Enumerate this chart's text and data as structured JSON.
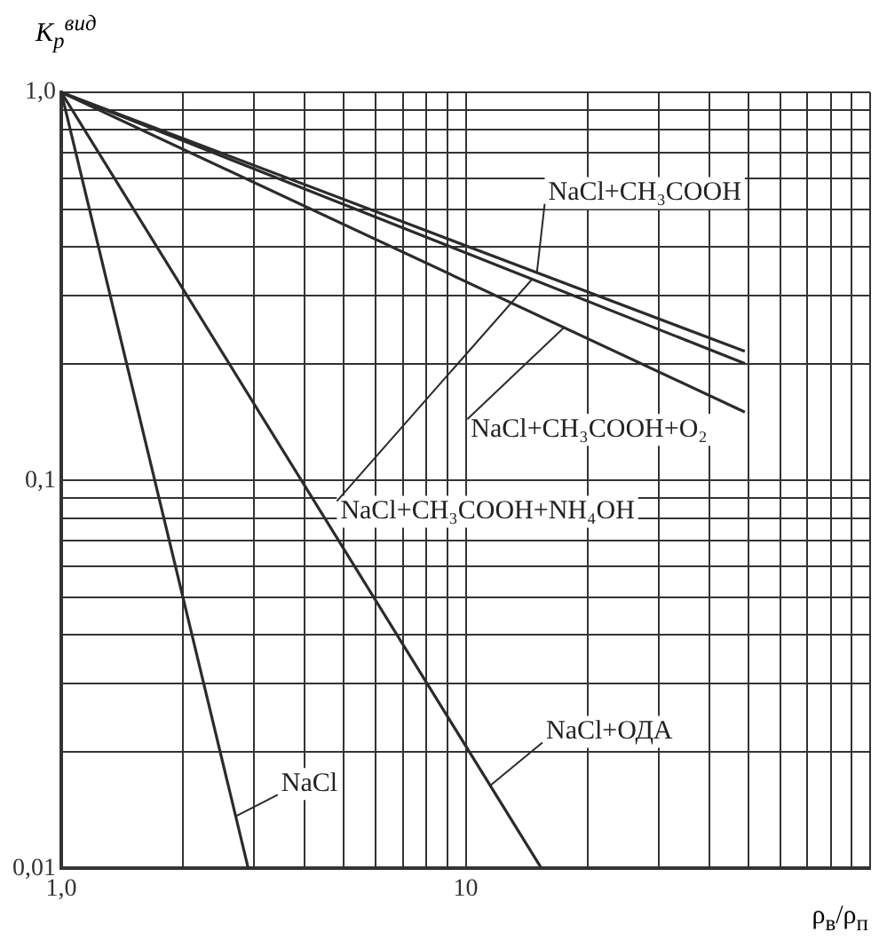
{
  "chart_data": {
    "type": "line",
    "xlabel": "ρ$_{в}$/ρ$_{п}$",
    "ylabel": "K$_{р}$$^{вид}$",
    "log": "xy",
    "grid": true,
    "legend": false,
    "marker": "none",
    "line_style": "solid",
    "xlim": [
      1,
      100
    ],
    "ylim": [
      0.01,
      1
    ],
    "xticks": [
      {
        "value": 1,
        "label": "1,0"
      },
      {
        "value": 2,
        "label": null
      },
      {
        "value": 3,
        "label": null
      },
      {
        "value": 4,
        "label": null
      },
      {
        "value": 5,
        "label": null
      },
      {
        "value": 6,
        "label": null
      },
      {
        "value": 7,
        "label": null
      },
      {
        "value": 8,
        "label": null
      },
      {
        "value": 9,
        "label": null
      },
      {
        "value": 10,
        "label": "10"
      },
      {
        "value": 20,
        "label": null
      },
      {
        "value": 30,
        "label": null
      },
      {
        "value": 40,
        "label": null
      },
      {
        "value": 50,
        "label": null
      },
      {
        "value": 60,
        "label": null
      },
      {
        "value": 70,
        "label": null
      },
      {
        "value": 80,
        "label": null
      },
      {
        "value": 90,
        "label": null
      },
      {
        "value": 100,
        "label": null
      }
    ],
    "yticks": [
      {
        "value": 0.01,
        "label": "0,01"
      },
      {
        "value": 0.02,
        "label": null
      },
      {
        "value": 0.03,
        "label": null
      },
      {
        "value": 0.04,
        "label": null
      },
      {
        "value": 0.05,
        "label": null
      },
      {
        "value": 0.06,
        "label": null
      },
      {
        "value": 0.07,
        "label": null
      },
      {
        "value": 0.08,
        "label": null
      },
      {
        "value": 0.09,
        "label": null
      },
      {
        "value": 0.1,
        "label": "0,1"
      },
      {
        "value": 0.2,
        "label": null
      },
      {
        "value": 0.3,
        "label": null
      },
      {
        "value": 0.4,
        "label": null
      },
      {
        "value": 0.5,
        "label": null
      },
      {
        "value": 0.6,
        "label": null
      },
      {
        "value": 0.7,
        "label": null
      },
      {
        "value": 0.8,
        "label": null
      },
      {
        "value": 0.9,
        "label": null
      },
      {
        "value": 1,
        "label": "1,0"
      }
    ],
    "series": [
      {
        "name": "NaCl",
        "color": "#2b2b2b",
        "x": [
          1,
          2.9
        ],
        "values": [
          1,
          0.01
        ]
      },
      {
        "name": "NaCl+ОДА",
        "color": "#2b2b2b",
        "x": [
          1,
          15.4
        ],
        "values": [
          1,
          0.01
        ]
      },
      {
        "name": "NaCl+CH₃COOH",
        "color": "#2b2b2b",
        "x": [
          1,
          49
        ],
        "values": [
          1,
          0.215
        ]
      },
      {
        "name": "NaCl+CH₃COOH+O₂",
        "color": "#2b2b2b",
        "x": [
          1,
          49
        ],
        "values": [
          1,
          0.15
        ]
      },
      {
        "name": "NaCl+CH₃COOH+NH₄OH",
        "color": "#2b2b2b",
        "x": [
          1,
          49
        ],
        "values": [
          1,
          0.2
        ]
      }
    ]
  }
}
